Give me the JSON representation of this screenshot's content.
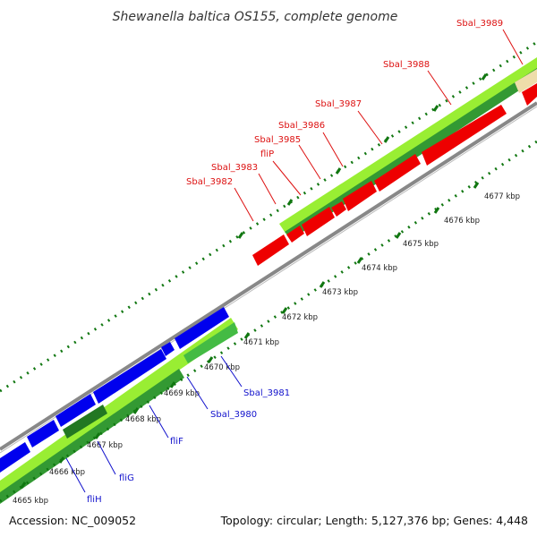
{
  "title": "Shewanella baltica OS155, complete genome",
  "footer": {
    "accession": "Accession: NC_009052",
    "topology": "Topology: circular; Length: 5,127,376 bp; Genes: 4,448"
  },
  "kbp_labels": [
    "4665 kbp",
    "4666 kbp",
    "4667 kbp",
    "4668 kbp",
    "4669 kbp",
    "4670 kbp",
    "4671 kbp",
    "4672 kbp",
    "4673 kbp",
    "4674 kbp",
    "4675 kbp",
    "4676 kbp",
    "4677 kbp"
  ],
  "red_labels": [
    "Sbal_3982",
    "Sbal_3983",
    "fliP",
    "Sbal_3985",
    "Sbal_3986",
    "Sbal_3987",
    "Sbal_3988",
    "Sbal_3989"
  ],
  "blue_labels": [
    "fliH",
    "fliG",
    "fliF",
    "Sbal_3980",
    "Sbal_3981"
  ],
  "colors": {
    "forward_cds": "#ff0000",
    "reverse_cds": "#0000ee",
    "gc_light": "#99ee33",
    "gc_dark": "#339933",
    "tick": "#117711",
    "backbone": "#888888",
    "pseudo": "#eeddaa"
  }
}
